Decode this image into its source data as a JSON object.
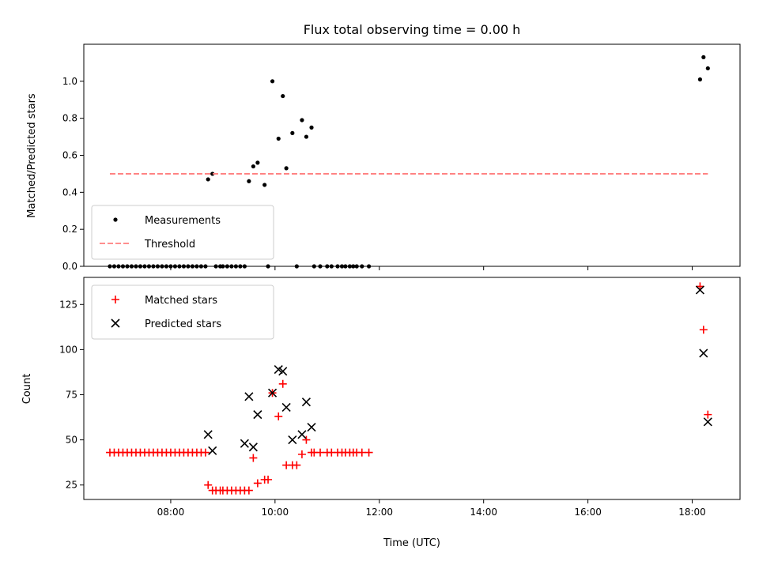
{
  "figure": {
    "title": "Flux total observing time = 0.00 h"
  },
  "chart_data": [
    {
      "type": "scatter",
      "ylabel": "Matched/Predicted stars",
      "xlabel": "",
      "xlim": [
        "06:20",
        "18:55"
      ],
      "ylim": [
        0,
        1.2
      ],
      "x_ticks": [
        "08:00",
        "10:00",
        "12:00",
        "14:00",
        "16:00",
        "18:00"
      ],
      "y_ticks": [
        "0.0",
        "0.2",
        "0.4",
        "0.6",
        "0.8",
        "1.0"
      ],
      "legend": {
        "position": "lower-left"
      },
      "series": [
        {
          "name": "Measurements",
          "color": "#000000",
          "marker": "dot",
          "points": [
            [
              "06:50",
              0
            ],
            [
              "06:55",
              0
            ],
            [
              "07:00",
              0
            ],
            [
              "07:05",
              0
            ],
            [
              "07:10",
              0
            ],
            [
              "07:15",
              0
            ],
            [
              "07:20",
              0
            ],
            [
              "07:25",
              0
            ],
            [
              "07:30",
              0
            ],
            [
              "07:35",
              0
            ],
            [
              "07:40",
              0
            ],
            [
              "07:45",
              0
            ],
            [
              "07:50",
              0
            ],
            [
              "07:55",
              0
            ],
            [
              "08:00",
              0
            ],
            [
              "08:05",
              0
            ],
            [
              "08:10",
              0
            ],
            [
              "08:15",
              0
            ],
            [
              "08:20",
              0
            ],
            [
              "08:25",
              0
            ],
            [
              "08:30",
              0
            ],
            [
              "08:35",
              0
            ],
            [
              "08:40",
              0
            ],
            [
              "08:43",
              0.47
            ],
            [
              "08:48",
              0.5
            ],
            [
              "08:52",
              0
            ],
            [
              "08:57",
              0
            ],
            [
              "09:00",
              0
            ],
            [
              "09:05",
              0
            ],
            [
              "09:10",
              0
            ],
            [
              "09:15",
              0
            ],
            [
              "09:20",
              0
            ],
            [
              "09:25",
              0
            ],
            [
              "09:30",
              0.46
            ],
            [
              "09:35",
              0.54
            ],
            [
              "09:40",
              0.56
            ],
            [
              "09:48",
              0.44
            ],
            [
              "09:52",
              0
            ],
            [
              "09:57",
              1.0
            ],
            [
              "10:04",
              0.69
            ],
            [
              "10:09",
              0.92
            ],
            [
              "10:13",
              0.53
            ],
            [
              "10:20",
              0.72
            ],
            [
              "10:25",
              0
            ],
            [
              "10:31",
              0.79
            ],
            [
              "10:36",
              0.7
            ],
            [
              "10:42",
              0.75
            ],
            [
              "10:45",
              0
            ],
            [
              "10:52",
              0
            ],
            [
              "11:00",
              0
            ],
            [
              "11:05",
              0
            ],
            [
              "11:12",
              0
            ],
            [
              "11:17",
              0
            ],
            [
              "11:21",
              0
            ],
            [
              "11:26",
              0
            ],
            [
              "11:30",
              0
            ],
            [
              "11:34",
              0
            ],
            [
              "11:40",
              0
            ],
            [
              "11:48",
              0
            ],
            [
              "18:09",
              1.01
            ],
            [
              "18:13",
              1.13
            ],
            [
              "18:18",
              1.07
            ]
          ]
        },
        {
          "name": "Threshold",
          "color": "#ff7f7f",
          "marker": "dashed-line",
          "points": [
            [
              "06:50",
              0.5
            ],
            [
              "18:18",
              0.5
            ]
          ]
        }
      ]
    },
    {
      "type": "scatter",
      "ylabel": "Count",
      "xlabel": "Time (UTC)",
      "xlim": [
        "06:20",
        "18:55"
      ],
      "ylim": [
        17,
        140
      ],
      "x_ticks": [
        "08:00",
        "10:00",
        "12:00",
        "14:00",
        "16:00",
        "18:00"
      ],
      "y_ticks": [
        "25",
        "50",
        "75",
        "100",
        "125"
      ],
      "legend": {
        "position": "top-left"
      },
      "series": [
        {
          "name": "Matched stars",
          "color": "#ff0000",
          "marker": "plus",
          "points": [
            [
              "06:50",
              43
            ],
            [
              "06:55",
              43
            ],
            [
              "07:00",
              43
            ],
            [
              "07:05",
              43
            ],
            [
              "07:10",
              43
            ],
            [
              "07:15",
              43
            ],
            [
              "07:20",
              43
            ],
            [
              "07:25",
              43
            ],
            [
              "07:30",
              43
            ],
            [
              "07:35",
              43
            ],
            [
              "07:40",
              43
            ],
            [
              "07:45",
              43
            ],
            [
              "07:50",
              43
            ],
            [
              "07:55",
              43
            ],
            [
              "08:00",
              43
            ],
            [
              "08:05",
              43
            ],
            [
              "08:10",
              43
            ],
            [
              "08:15",
              43
            ],
            [
              "08:20",
              43
            ],
            [
              "08:25",
              43
            ],
            [
              "08:30",
              43
            ],
            [
              "08:35",
              43
            ],
            [
              "08:40",
              43
            ],
            [
              "08:43",
              25
            ],
            [
              "08:48",
              22
            ],
            [
              "08:52",
              22
            ],
            [
              "08:57",
              22
            ],
            [
              "09:00",
              22
            ],
            [
              "09:05",
              22
            ],
            [
              "09:10",
              22
            ],
            [
              "09:15",
              22
            ],
            [
              "09:20",
              22
            ],
            [
              "09:25",
              22
            ],
            [
              "09:30",
              22
            ],
            [
              "09:35",
              40
            ],
            [
              "09:40",
              26
            ],
            [
              "09:48",
              28
            ],
            [
              "09:52",
              28
            ],
            [
              "09:57",
              76
            ],
            [
              "10:04",
              63
            ],
            [
              "10:09",
              81
            ],
            [
              "10:13",
              36
            ],
            [
              "10:20",
              36
            ],
            [
              "10:25",
              36
            ],
            [
              "10:31",
              42
            ],
            [
              "10:36",
              50
            ],
            [
              "10:42",
              43
            ],
            [
              "10:45",
              43
            ],
            [
              "10:52",
              43
            ],
            [
              "11:00",
              43
            ],
            [
              "11:05",
              43
            ],
            [
              "11:12",
              43
            ],
            [
              "11:17",
              43
            ],
            [
              "11:21",
              43
            ],
            [
              "11:26",
              43
            ],
            [
              "11:30",
              43
            ],
            [
              "11:34",
              43
            ],
            [
              "11:40",
              43
            ],
            [
              "11:48",
              43
            ],
            [
              "18:09",
              135
            ],
            [
              "18:13",
              111
            ],
            [
              "18:18",
              64
            ]
          ]
        },
        {
          "name": "Predicted stars",
          "color": "#000000",
          "marker": "x",
          "points": [
            [
              "08:43",
              53
            ],
            [
              "08:48",
              44
            ],
            [
              "09:25",
              48
            ],
            [
              "09:30",
              74
            ],
            [
              "09:35",
              46
            ],
            [
              "09:40",
              64
            ],
            [
              "09:57",
              76
            ],
            [
              "10:04",
              89
            ],
            [
              "10:09",
              88
            ],
            [
              "10:13",
              68
            ],
            [
              "10:20",
              50
            ],
            [
              "10:31",
              53
            ],
            [
              "10:36",
              71
            ],
            [
              "10:42",
              57
            ],
            [
              "18:09",
              133
            ],
            [
              "18:13",
              98
            ],
            [
              "18:18",
              60
            ]
          ]
        }
      ]
    }
  ]
}
